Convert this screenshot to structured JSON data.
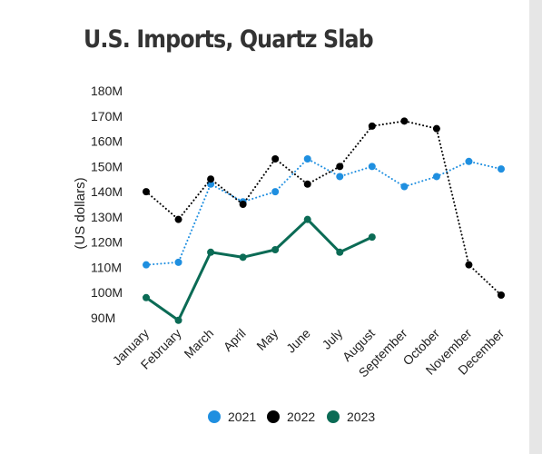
{
  "chart_data": {
    "type": "line",
    "title": "U.S. Imports, Quartz Slab",
    "xlabel": "",
    "ylabel": "(US dollars)",
    "categories": [
      "January",
      "February",
      "March",
      "April",
      "May",
      "June",
      "July",
      "August",
      "September",
      "October",
      "November",
      "December"
    ],
    "y_ticks": [
      "180M",
      "170M",
      "160M",
      "150M",
      "140M",
      "130M",
      "120M",
      "110M",
      "100M",
      "90M"
    ],
    "ylim": [
      90,
      180
    ],
    "grid": false,
    "legend_placement": "bottom",
    "series": [
      {
        "name": "2021",
        "color": "#1f8fe0",
        "line_style": "dotted",
        "values": [
          111,
          112,
          143,
          136,
          140,
          153,
          146,
          150,
          142,
          146,
          152,
          149
        ]
      },
      {
        "name": "2022",
        "color": "#000000",
        "line_style": "dotted",
        "values": [
          140,
          129,
          145,
          135,
          153,
          143,
          150,
          166,
          168,
          165,
          111,
          99
        ]
      },
      {
        "name": "2023",
        "color": "#0b6b55",
        "line_style": "solid",
        "values": [
          98,
          89,
          116,
          114,
          117,
          129,
          116,
          122,
          null,
          null,
          null,
          null
        ]
      }
    ]
  }
}
